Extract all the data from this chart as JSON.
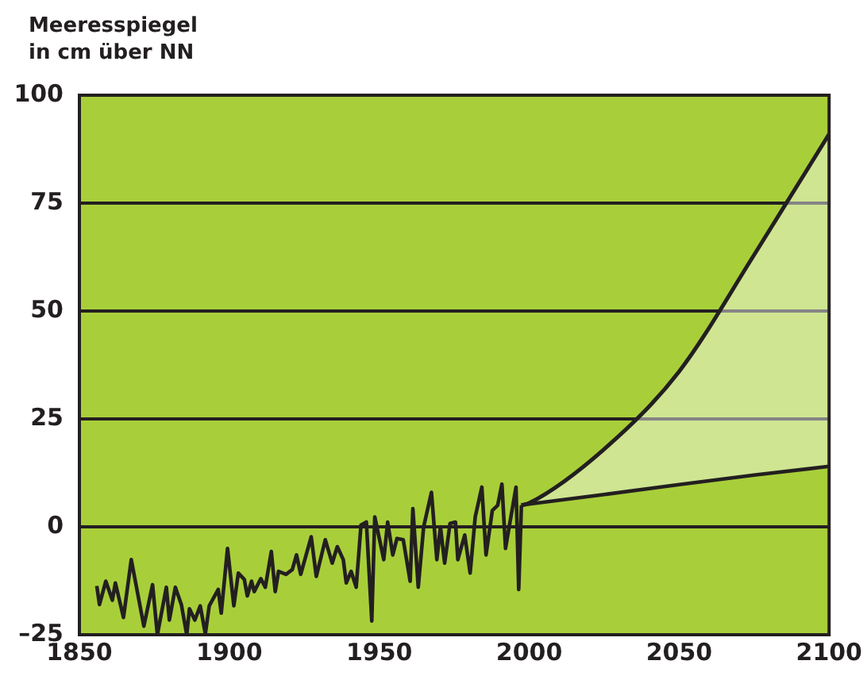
{
  "chart_data": {
    "type": "line",
    "ylabel": "Meeresspiegel\nin cm über NN",
    "xlim": [
      1850,
      2100
    ],
    "xticks": [
      1850,
      1900,
      1950,
      2000,
      2050,
      2100
    ],
    "ylim": [
      -25,
      100
    ],
    "yticks": [
      {
        "value": -25,
        "label": "–25"
      },
      0,
      25,
      50,
      75,
      100
    ],
    "grid": "y",
    "legend": false,
    "marker": "none",
    "line_style": "solid",
    "series": [
      {
        "color": "#231f20",
        "x": [
          1855.8,
          1856.7,
          1858.8,
          1861,
          1862,
          1864.7,
          1867.3,
          1871.5,
          1874.4,
          1876,
          1879,
          1880,
          1882,
          1884,
          1885.8,
          1886.7,
          1888.5,
          1890.3,
          1892,
          1893.3,
          1896.3,
          1897.3,
          1899.4,
          1901.5,
          1903,
          1905,
          1906,
          1907.4,
          1908.3,
          1910.5,
          1912,
          1914,
          1915.3,
          1916.4,
          1918.9,
          1921,
          1922.4,
          1923.8,
          1927.3,
          1929,
          1932,
          1934.3,
          1936,
          1938,
          1939,
          1940.6,
          1942.3,
          1943.9,
          1945.7,
          1947.5,
          1948.5,
          1951.5,
          1952.8,
          1954.5,
          1955.9,
          1958,
          1960.3,
          1961.2,
          1963,
          1964.8,
          1967.4,
          1969.2,
          1970.4,
          1971.8,
          1973.6,
          1975.4,
          1976.2,
          1978.5,
          1980.3,
          1982,
          1984.2,
          1985.6,
          1987.7,
          1989.5,
          1990.9,
          1992.1,
          1995.6,
          1996.5,
          1997.4
        ],
        "values": [
          -13.7,
          -18,
          -12.6,
          -17,
          -13,
          -21,
          -7.6,
          -23,
          -13.4,
          -25,
          -14,
          -21.6,
          -14,
          -18,
          -25,
          -19,
          -21.6,
          -18.3,
          -24.8,
          -18.3,
          -14.5,
          -20,
          -5,
          -18.3,
          -10.7,
          -12.2,
          -16,
          -12.6,
          -15,
          -12,
          -14,
          -5.7,
          -15,
          -10.3,
          -11,
          -9.9,
          -6.5,
          -11,
          -2.3,
          -11.5,
          -3,
          -8.4,
          -4.6,
          -7.6,
          -13,
          -10.3,
          -14,
          0.4,
          1.1,
          -21.8,
          2.3,
          -7.6,
          1.1,
          -6.5,
          -2.7,
          -3,
          -12.6,
          4.2,
          -14,
          0,
          8,
          -7.6,
          0,
          -8.4,
          0.8,
          1.1,
          -7.6,
          -1.9,
          -10.7,
          2.3,
          9.2,
          -6.5,
          3.8,
          5,
          9.9,
          -5,
          9.2,
          -14.5,
          5
        ]
      },
      {
        "color": "#231f20",
        "x": [
          1997.4,
          2000,
          2025,
          2050,
          2075,
          2100
        ],
        "values": [
          5,
          5.3,
          7.5,
          9.8,
          12,
          14
        ]
      },
      {
        "type": "area",
        "color": "#231f20",
        "x": [
          1997.4,
          2000,
          2025,
          2050,
          2075,
          2100
        ],
        "values": [
          5,
          5.5,
          18,
          36,
          63,
          91
        ]
      }
    ]
  }
}
